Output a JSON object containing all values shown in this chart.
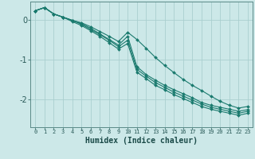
{
  "xlabel": "Humidex (Indice chaleur)",
  "bg_color": "#cce8e8",
  "grid_color": "#aacfcf",
  "line_color": "#1a7a6e",
  "xlim": [
    -0.5,
    23.5
  ],
  "ylim": [
    -2.7,
    0.45
  ],
  "xticks": [
    0,
    1,
    2,
    3,
    4,
    5,
    6,
    7,
    8,
    9,
    10,
    11,
    12,
    13,
    14,
    15,
    16,
    17,
    18,
    19,
    20,
    21,
    22,
    23
  ],
  "yticks": [
    0,
    -1,
    -2
  ],
  "series": [
    [
      0.22,
      0.3,
      0.14,
      0.06,
      -0.02,
      -0.08,
      -0.18,
      -0.3,
      -0.42,
      -0.55,
      -0.32,
      -0.5,
      -0.72,
      -0.95,
      -1.15,
      -1.33,
      -1.5,
      -1.65,
      -1.78,
      -1.92,
      -2.05,
      -2.15,
      -2.22,
      -2.18
    ],
    [
      0.22,
      0.3,
      0.14,
      0.06,
      -0.02,
      -0.1,
      -0.22,
      -0.36,
      -0.5,
      -0.64,
      -0.42,
      -1.18,
      -1.38,
      -1.52,
      -1.65,
      -1.76,
      -1.86,
      -1.96,
      -2.08,
      -2.15,
      -2.2,
      -2.25,
      -2.3,
      -2.26
    ],
    [
      0.22,
      0.3,
      0.14,
      0.06,
      -0.02,
      -0.12,
      -0.25,
      -0.38,
      -0.52,
      -0.68,
      -0.52,
      -1.25,
      -1.42,
      -1.58,
      -1.7,
      -1.82,
      -1.92,
      -2.02,
      -2.12,
      -2.2,
      -2.25,
      -2.3,
      -2.35,
      -2.3
    ],
    [
      0.22,
      0.3,
      0.14,
      0.06,
      -0.05,
      -0.15,
      -0.28,
      -0.42,
      -0.58,
      -0.74,
      -0.6,
      -1.32,
      -1.48,
      -1.65,
      -1.76,
      -1.88,
      -1.98,
      -2.08,
      -2.18,
      -2.25,
      -2.3,
      -2.35,
      -2.4,
      -2.35
    ]
  ]
}
